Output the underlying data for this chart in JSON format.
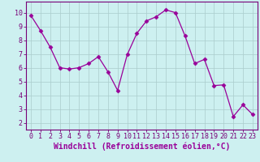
{
  "x": [
    0,
    1,
    2,
    3,
    4,
    5,
    6,
    7,
    8,
    9,
    10,
    11,
    12,
    13,
    14,
    15,
    16,
    17,
    18,
    19,
    20,
    21,
    22,
    23
  ],
  "y": [
    9.8,
    8.7,
    7.5,
    6.0,
    5.9,
    6.0,
    6.3,
    6.8,
    5.7,
    4.35,
    6.95,
    8.5,
    9.4,
    9.7,
    10.2,
    10.0,
    8.3,
    6.3,
    6.6,
    4.7,
    4.75,
    2.45,
    3.3,
    2.6
  ],
  "line_color": "#990099",
  "marker": "D",
  "marker_size": 2.5,
  "bg_color": "#cdf0f0",
  "grid_color": "#aacccc",
  "xlabel": "Windchill (Refroidissement éolien,°C)",
  "xlabel_color": "#990099",
  "xlim": [
    -0.5,
    23.5
  ],
  "ylim": [
    1.5,
    10.8
  ],
  "yticks": [
    2,
    3,
    4,
    5,
    6,
    7,
    8,
    9,
    10
  ],
  "xticks": [
    0,
    1,
    2,
    3,
    4,
    5,
    6,
    7,
    8,
    9,
    10,
    11,
    12,
    13,
    14,
    15,
    16,
    17,
    18,
    19,
    20,
    21,
    22,
    23
  ],
  "tick_label_size": 6.0,
  "xlabel_size": 7.0,
  "spine_color": "#770077",
  "tick_color": "#770077"
}
